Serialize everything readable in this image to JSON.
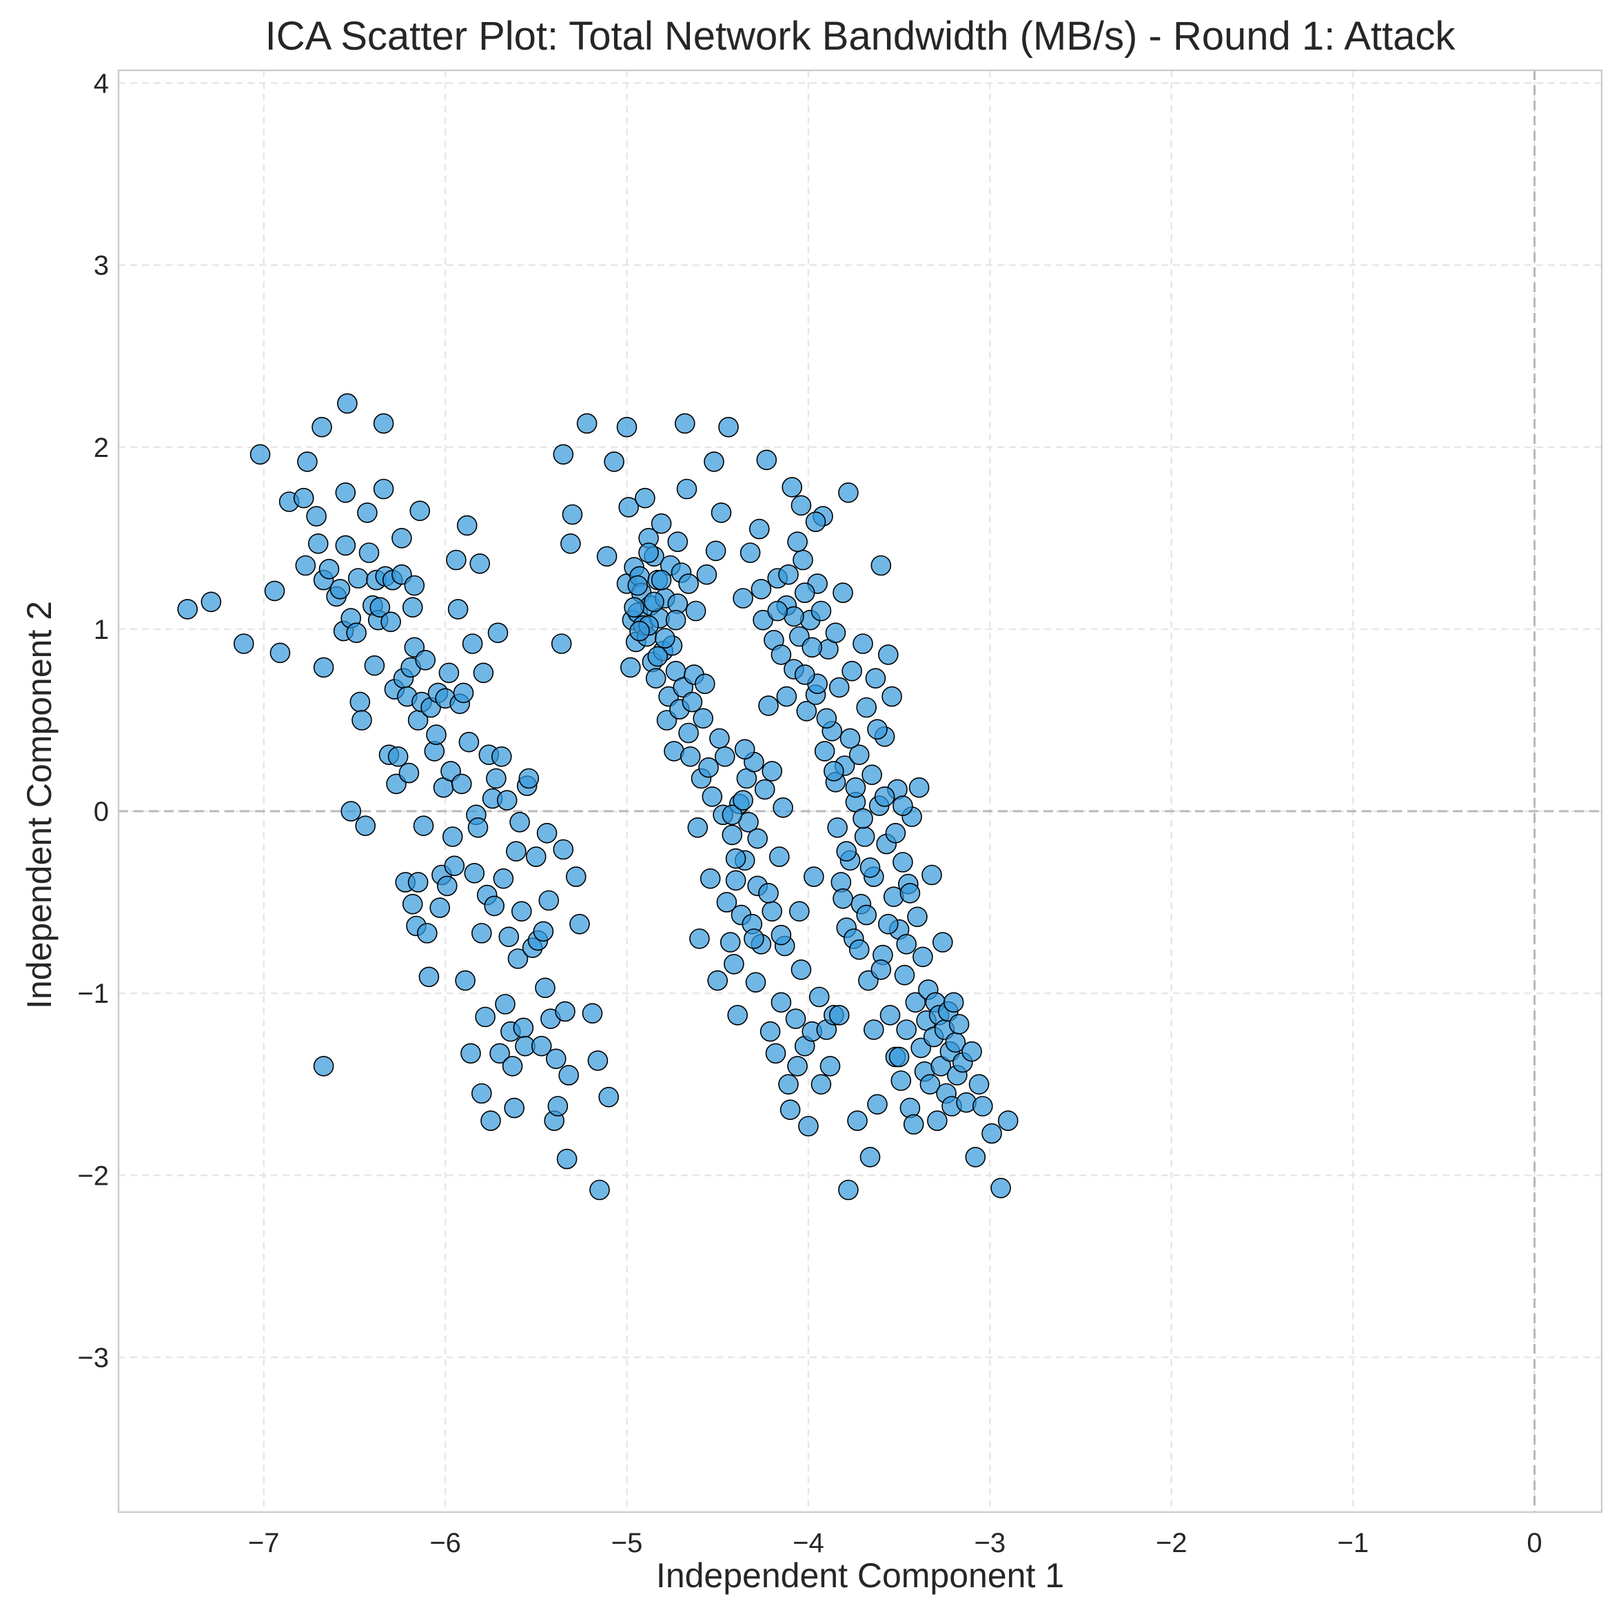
{
  "chart_data": {
    "type": "scatter",
    "title": "ICA Scatter Plot: Total Network Bandwidth (MB/s) - Round 1: Attack",
    "xlabel": "Independent Component 1",
    "ylabel": "Independent Component 2",
    "xlim": [
      -7.8,
      0.37
    ],
    "ylim": [
      -3.85,
      4.07
    ],
    "xticks": [
      -7,
      -6,
      -5,
      -4,
      -3,
      -2,
      -1,
      0
    ],
    "yticks": [
      -3,
      -2,
      -1,
      0,
      1,
      2,
      3,
      4
    ],
    "xtick_labels": [
      "−7",
      "−6",
      "−5",
      "−4",
      "−3",
      "−2",
      "−1",
      "0"
    ],
    "ytick_labels": [
      "−3",
      "−2",
      "−1",
      "0",
      "1",
      "2",
      "3",
      "4"
    ],
    "grid": true,
    "reference_lines": {
      "x": 0,
      "y": 0
    },
    "point_color": "#3498db",
    "edge_color": "#000000",
    "points": [
      [
        -7.42,
        1.11
      ],
      [
        -7.29,
        1.15
      ],
      [
        -7.11,
        0.92
      ],
      [
        -7.02,
        1.96
      ],
      [
        -6.94,
        1.21
      ],
      [
        -6.91,
        0.87
      ],
      [
        -6.86,
        1.7
      ],
      [
        -6.78,
        1.72
      ],
      [
        -6.77,
        1.35
      ],
      [
        -6.76,
        1.92
      ],
      [
        -6.71,
        1.62
      ],
      [
        -6.7,
        1.47
      ],
      [
        -6.68,
        2.11
      ],
      [
        -6.67,
        1.27
      ],
      [
        -6.67,
        0.79
      ],
      [
        -6.67,
        -1.4
      ],
      [
        -6.64,
        1.33
      ],
      [
        -6.6,
        1.18
      ],
      [
        -6.58,
        1.22
      ],
      [
        -6.56,
        0.99
      ],
      [
        -6.55,
        1.46
      ],
      [
        -6.55,
        1.75
      ],
      [
        -6.54,
        2.24
      ],
      [
        -6.52,
        1.06
      ],
      [
        -6.52,
        0.0
      ],
      [
        -6.49,
        0.98
      ],
      [
        -6.48,
        1.28
      ],
      [
        -6.47,
        0.6
      ],
      [
        -6.46,
        0.5
      ],
      [
        -6.44,
        -0.08
      ],
      [
        -6.43,
        1.64
      ],
      [
        -6.42,
        1.42
      ],
      [
        -6.4,
        1.13
      ],
      [
        -6.39,
        0.8
      ],
      [
        -6.38,
        1.27
      ],
      [
        -6.37,
        1.05
      ],
      [
        -6.36,
        1.12
      ],
      [
        -6.34,
        1.77
      ],
      [
        -6.34,
        2.13
      ],
      [
        -6.33,
        1.29
      ],
      [
        -6.31,
        0.31
      ],
      [
        -6.3,
        1.04
      ],
      [
        -6.29,
        1.27
      ],
      [
        -6.28,
        0.67
      ],
      [
        -6.27,
        0.15
      ],
      [
        -6.26,
        0.3
      ],
      [
        -6.24,
        1.5
      ],
      [
        -6.24,
        1.3
      ],
      [
        -6.23,
        0.73
      ],
      [
        -6.22,
        -0.39
      ],
      [
        -6.21,
        0.63
      ],
      [
        -6.2,
        0.21
      ],
      [
        -6.19,
        0.79
      ],
      [
        -6.18,
        -0.51
      ],
      [
        -6.18,
        1.12
      ],
      [
        -6.17,
        1.24
      ],
      [
        -6.17,
        0.9
      ],
      [
        -6.16,
        -0.63
      ],
      [
        -6.15,
        0.5
      ],
      [
        -6.15,
        -0.39
      ],
      [
        -6.14,
        1.65
      ],
      [
        -6.13,
        0.6
      ],
      [
        -6.12,
        -0.08
      ],
      [
        -6.11,
        0.83
      ],
      [
        -6.1,
        -0.67
      ],
      [
        -6.09,
        -0.91
      ],
      [
        -6.08,
        0.57
      ],
      [
        -6.06,
        0.33
      ],
      [
        -6.05,
        0.42
      ],
      [
        -6.04,
        0.65
      ],
      [
        -6.03,
        -0.53
      ],
      [
        -6.02,
        -0.35
      ],
      [
        -6.01,
        0.13
      ],
      [
        -6.0,
        0.62
      ],
      [
        -5.99,
        -0.41
      ],
      [
        -5.98,
        0.76
      ],
      [
        -5.97,
        0.22
      ],
      [
        -5.96,
        -0.14
      ],
      [
        -5.95,
        -0.3
      ],
      [
        -5.94,
        1.38
      ],
      [
        -5.93,
        1.11
      ],
      [
        -5.92,
        0.59
      ],
      [
        -5.91,
        0.15
      ],
      [
        -5.9,
        0.65
      ],
      [
        -5.89,
        -0.93
      ],
      [
        -5.88,
        1.57
      ],
      [
        -5.87,
        0.38
      ],
      [
        -5.86,
        -1.33
      ],
      [
        -5.85,
        0.92
      ],
      [
        -5.84,
        -0.34
      ],
      [
        -5.83,
        -0.02
      ],
      [
        -5.82,
        -0.09
      ],
      [
        -5.81,
        1.36
      ],
      [
        -5.8,
        -0.67
      ],
      [
        -5.8,
        -1.55
      ],
      [
        -5.79,
        0.76
      ],
      [
        -5.78,
        -1.13
      ],
      [
        -5.77,
        -0.46
      ],
      [
        -5.76,
        0.31
      ],
      [
        -5.75,
        -1.7
      ],
      [
        -5.74,
        0.07
      ],
      [
        -5.73,
        -0.52
      ],
      [
        -5.72,
        0.18
      ],
      [
        -5.71,
        0.98
      ],
      [
        -5.7,
        -1.33
      ],
      [
        -5.69,
        0.3
      ],
      [
        -5.68,
        -0.37
      ],
      [
        -5.67,
        -1.06
      ],
      [
        -5.66,
        0.06
      ],
      [
        -5.65,
        -0.69
      ],
      [
        -5.64,
        -1.21
      ],
      [
        -5.63,
        -1.4
      ],
      [
        -5.62,
        -1.63
      ],
      [
        -5.61,
        -0.22
      ],
      [
        -5.6,
        -0.81
      ],
      [
        -5.59,
        -0.06
      ],
      [
        -5.58,
        -0.55
      ],
      [
        -5.57,
        -1.19
      ],
      [
        -5.56,
        -1.29
      ],
      [
        -5.55,
        0.14
      ],
      [
        -5.54,
        0.18
      ],
      [
        -5.52,
        -0.75
      ],
      [
        -5.5,
        -0.25
      ],
      [
        -5.49,
        -0.71
      ],
      [
        -5.47,
        -1.29
      ],
      [
        -5.46,
        -0.66
      ],
      [
        -5.45,
        -0.97
      ],
      [
        -5.44,
        -0.12
      ],
      [
        -5.43,
        -0.49
      ],
      [
        -5.42,
        -1.14
      ],
      [
        -5.4,
        -1.7
      ],
      [
        -5.39,
        -1.36
      ],
      [
        -5.38,
        -1.62
      ],
      [
        -5.36,
        0.92
      ],
      [
        -5.35,
        -0.21
      ],
      [
        -5.34,
        -1.1
      ],
      [
        -5.33,
        -1.91
      ],
      [
        -5.32,
        -1.45
      ],
      [
        -5.31,
        1.47
      ],
      [
        -5.3,
        1.63
      ],
      [
        -5.28,
        -0.36
      ],
      [
        -5.26,
        -0.62
      ],
      [
        -5.22,
        2.13
      ],
      [
        -5.19,
        -1.11
      ],
      [
        -5.16,
        -1.37
      ],
      [
        -5.15,
        -2.08
      ],
      [
        -5.1,
        -1.57
      ],
      [
        -5.07,
        1.92
      ],
      [
        -5.35,
        1.96
      ],
      [
        -5.11,
        1.4
      ],
      [
        -5.0,
        2.11
      ],
      [
        -5.0,
        1.25
      ],
      [
        -4.99,
        1.67
      ],
      [
        -4.98,
        0.79
      ],
      [
        -4.97,
        1.05
      ],
      [
        -4.96,
        1.34
      ],
      [
        -4.95,
        0.93
      ],
      [
        -4.94,
        1.09
      ],
      [
        -4.93,
        1.29
      ],
      [
        -4.92,
        1.2
      ],
      [
        -4.91,
        1.02
      ],
      [
        -4.9,
        1.72
      ],
      [
        -4.89,
        0.96
      ],
      [
        -4.88,
        1.5
      ],
      [
        -4.87,
        1.13
      ],
      [
        -4.86,
        0.82
      ],
      [
        -4.85,
        1.4
      ],
      [
        -4.84,
        0.73
      ],
      [
        -4.83,
        1.27
      ],
      [
        -4.82,
        1.06
      ],
      [
        -4.81,
        1.58
      ],
      [
        -4.8,
        0.88
      ],
      [
        -4.79,
        1.17
      ],
      [
        -4.78,
        0.5
      ],
      [
        -4.77,
        0.63
      ],
      [
        -4.76,
        1.35
      ],
      [
        -4.75,
        0.91
      ],
      [
        -4.74,
        0.33
      ],
      [
        -4.73,
        0.77
      ],
      [
        -4.72,
        1.14
      ],
      [
        -4.71,
        0.56
      ],
      [
        -4.7,
        1.31
      ],
      [
        -4.69,
        0.68
      ],
      [
        -4.68,
        2.13
      ],
      [
        -4.67,
        1.77
      ],
      [
        -4.66,
        0.43
      ],
      [
        -4.65,
        0.3
      ],
      [
        -4.64,
        0.6
      ],
      [
        -4.63,
        0.75
      ],
      [
        -4.62,
        1.1
      ],
      [
        -4.61,
        -0.09
      ],
      [
        -4.6,
        -0.7
      ],
      [
        -4.59,
        0.18
      ],
      [
        -4.58,
        0.51
      ],
      [
        -4.57,
        0.7
      ],
      [
        -4.56,
        1.3
      ],
      [
        -4.55,
        0.24
      ],
      [
        -4.54,
        -0.37
      ],
      [
        -4.53,
        0.08
      ],
      [
        -4.52,
        1.92
      ],
      [
        -4.51,
        1.43
      ],
      [
        -4.5,
        -0.93
      ],
      [
        -4.49,
        0.4
      ],
      [
        -4.48,
        1.64
      ],
      [
        -4.47,
        -0.02
      ],
      [
        -4.46,
        0.3
      ],
      [
        -4.45,
        -0.5
      ],
      [
        -4.44,
        2.11
      ],
      [
        -4.43,
        -0.72
      ],
      [
        -4.42,
        -0.13
      ],
      [
        -4.41,
        -0.84
      ],
      [
        -4.4,
        -0.38
      ],
      [
        -4.39,
        -1.12
      ],
      [
        -4.38,
        0.04
      ],
      [
        -4.37,
        -0.57
      ],
      [
        -4.36,
        1.17
      ],
      [
        -4.35,
        -0.27
      ],
      [
        -4.34,
        0.18
      ],
      [
        -4.33,
        -0.06
      ],
      [
        -4.32,
        1.42
      ],
      [
        -4.31,
        -0.62
      ],
      [
        -4.3,
        0.27
      ],
      [
        -4.29,
        -0.94
      ],
      [
        -4.28,
        -0.41
      ],
      [
        -4.27,
        1.55
      ],
      [
        -4.26,
        -0.73
      ],
      [
        -4.25,
        1.05
      ],
      [
        -4.24,
        0.12
      ],
      [
        -4.23,
        1.93
      ],
      [
        -4.22,
        0.58
      ],
      [
        -4.21,
        -1.21
      ],
      [
        -4.2,
        -0.55
      ],
      [
        -4.19,
        0.94
      ],
      [
        -4.18,
        -1.33
      ],
      [
        -4.17,
        1.28
      ],
      [
        -4.16,
        -0.25
      ],
      [
        -4.15,
        -1.05
      ],
      [
        -4.14,
        0.02
      ],
      [
        -4.13,
        -0.74
      ],
      [
        -4.12,
        1.13
      ],
      [
        -4.11,
        -1.5
      ],
      [
        -4.1,
        -1.64
      ],
      [
        -4.09,
        1.78
      ],
      [
        -4.08,
        0.78
      ],
      [
        -4.07,
        -1.14
      ],
      [
        -4.06,
        -1.4
      ],
      [
        -4.05,
        0.96
      ],
      [
        -4.04,
        -0.87
      ],
      [
        -4.03,
        1.38
      ],
      [
        -4.02,
        -1.29
      ],
      [
        -4.01,
        0.55
      ],
      [
        -4.0,
        -1.73
      ],
      [
        -3.99,
        1.05
      ],
      [
        -3.98,
        -1.21
      ],
      [
        -3.97,
        -0.36
      ],
      [
        -3.96,
        0.64
      ],
      [
        -3.95,
        1.25
      ],
      [
        -3.94,
        -1.02
      ],
      [
        -3.93,
        -1.5
      ],
      [
        -3.92,
        1.62
      ],
      [
        -3.91,
        0.33
      ],
      [
        -3.9,
        -1.2
      ],
      [
        -3.89,
        0.89
      ],
      [
        -3.88,
        -1.4
      ],
      [
        -3.87,
        0.44
      ],
      [
        -3.86,
        -1.12
      ],
      [
        -3.85,
        0.16
      ],
      [
        -3.84,
        -0.09
      ],
      [
        -3.83,
        0.68
      ],
      [
        -3.82,
        -0.39
      ],
      [
        -3.81,
        1.2
      ],
      [
        -3.8,
        0.25
      ],
      [
        -3.79,
        -0.64
      ],
      [
        -3.78,
        1.75
      ],
      [
        -3.77,
        -0.27
      ],
      [
        -3.76,
        0.77
      ],
      [
        -3.75,
        -0.7
      ],
      [
        -3.74,
        0.05
      ],
      [
        -3.73,
        -1.7
      ],
      [
        -3.72,
        0.31
      ],
      [
        -3.71,
        -0.51
      ],
      [
        -3.7,
        0.92
      ],
      [
        -3.69,
        -0.14
      ],
      [
        -3.68,
        0.57
      ],
      [
        -3.67,
        -0.93
      ],
      [
        -3.66,
        -1.9
      ],
      [
        -3.65,
        0.2
      ],
      [
        -3.64,
        -0.36
      ],
      [
        -3.63,
        0.73
      ],
      [
        -3.62,
        -1.61
      ],
      [
        -3.61,
        0.03
      ],
      [
        -3.6,
        1.35
      ],
      [
        -3.59,
        -0.79
      ],
      [
        -3.58,
        0.41
      ],
      [
        -3.57,
        -0.18
      ],
      [
        -3.56,
        0.86
      ],
      [
        -3.55,
        -1.12
      ],
      [
        -3.54,
        0.63
      ],
      [
        -3.53,
        -0.47
      ],
      [
        -3.52,
        -1.35
      ],
      [
        -3.51,
        0.12
      ],
      [
        -3.5,
        -0.65
      ],
      [
        -3.49,
        -1.48
      ],
      [
        -3.48,
        -0.28
      ],
      [
        -3.47,
        -0.9
      ],
      [
        -3.46,
        -1.2
      ],
      [
        -3.45,
        -0.4
      ],
      [
        -3.44,
        -1.63
      ],
      [
        -3.43,
        -0.03
      ],
      [
        -3.42,
        -1.72
      ],
      [
        -3.41,
        -1.05
      ],
      [
        -3.4,
        -0.58
      ],
      [
        -3.39,
        0.13
      ],
      [
        -3.38,
        -1.3
      ],
      [
        -3.37,
        -0.8
      ],
      [
        -3.36,
        -1.43
      ],
      [
        -3.35,
        -1.15
      ],
      [
        -3.34,
        -0.98
      ],
      [
        -3.33,
        -1.5
      ],
      [
        -3.32,
        -0.35
      ],
      [
        -3.31,
        -1.24
      ],
      [
        -3.3,
        -1.05
      ],
      [
        -3.29,
        -1.7
      ],
      [
        -3.28,
        -1.12
      ],
      [
        -3.27,
        -1.4
      ],
      [
        -3.26,
        -0.72
      ],
      [
        -3.25,
        -1.2
      ],
      [
        -3.24,
        -1.55
      ],
      [
        -3.23,
        -1.1
      ],
      [
        -3.22,
        -1.32
      ],
      [
        -3.21,
        -1.62
      ],
      [
        -3.2,
        -1.05
      ],
      [
        -3.19,
        -1.27
      ],
      [
        -3.18,
        -1.45
      ],
      [
        -3.17,
        -1.17
      ],
      [
        -3.15,
        -1.38
      ],
      [
        -3.13,
        -1.6
      ],
      [
        -3.1,
        -1.32
      ],
      [
        -3.08,
        -1.9
      ],
      [
        -3.06,
        -1.5
      ],
      [
        -3.04,
        -1.62
      ],
      [
        -2.99,
        -1.77
      ],
      [
        -2.94,
        -2.07
      ],
      [
        -2.9,
        -1.7
      ],
      [
        -3.78,
        -2.08
      ],
      [
        -3.83,
        -1.12
      ],
      [
        -3.5,
        -1.35
      ],
      [
        -4.3,
        -0.7
      ],
      [
        -4.15,
        -0.68
      ],
      [
        -4.05,
        -0.55
      ],
      [
        -4.4,
        -0.26
      ],
      [
        -4.22,
        -0.45
      ],
      [
        -4.35,
        0.34
      ],
      [
        -4.2,
        0.22
      ],
      [
        -4.42,
        -0.02
      ],
      [
        -4.28,
        -0.15
      ],
      [
        -4.36,
        0.06
      ],
      [
        -3.9,
        0.51
      ],
      [
        -3.95,
        0.7
      ],
      [
        -3.62,
        0.45
      ],
      [
        -3.7,
        -0.04
      ],
      [
        -3.79,
        -0.22
      ],
      [
        -3.56,
        -0.62
      ],
      [
        -3.46,
        -0.73
      ],
      [
        -3.66,
        -0.31
      ],
      [
        -3.58,
        0.08
      ],
      [
        -3.52,
        -0.12
      ],
      [
        -3.74,
        0.13
      ],
      [
        -3.81,
        -0.48
      ],
      [
        -3.68,
        -0.57
      ],
      [
        -3.77,
        0.4
      ],
      [
        -3.86,
        0.22
      ],
      [
        -3.6,
        -0.87
      ],
      [
        -3.44,
        -0.45
      ],
      [
        -3.48,
        0.03
      ],
      [
        -3.72,
        -0.76
      ],
      [
        -3.64,
        -1.2
      ],
      [
        -4.08,
        1.07
      ],
      [
        -4.15,
        0.86
      ],
      [
        -3.98,
        0.9
      ],
      [
        -4.02,
        1.2
      ],
      [
        -3.93,
        1.1
      ],
      [
        -4.11,
        1.3
      ],
      [
        -4.17,
        1.1
      ],
      [
        -4.26,
        1.22
      ],
      [
        -4.06,
        1.48
      ],
      [
        -3.96,
        1.59
      ],
      [
        -4.04,
        1.68
      ],
      [
        -3.85,
        0.98
      ],
      [
        -4.12,
        0.63
      ],
      [
        -4.02,
        0.75
      ],
      [
        -4.88,
        1.02
      ],
      [
        -4.93,
        0.99
      ],
      [
        -4.96,
        1.12
      ],
      [
        -4.81,
        1.27
      ],
      [
        -4.73,
        1.05
      ],
      [
        -4.83,
        0.85
      ],
      [
        -4.66,
        1.25
      ],
      [
        -4.72,
        1.48
      ],
      [
        -4.88,
        1.42
      ],
      [
        -4.94,
        1.24
      ],
      [
        -4.79,
        0.95
      ],
      [
        -4.85,
        1.15
      ]
    ]
  }
}
